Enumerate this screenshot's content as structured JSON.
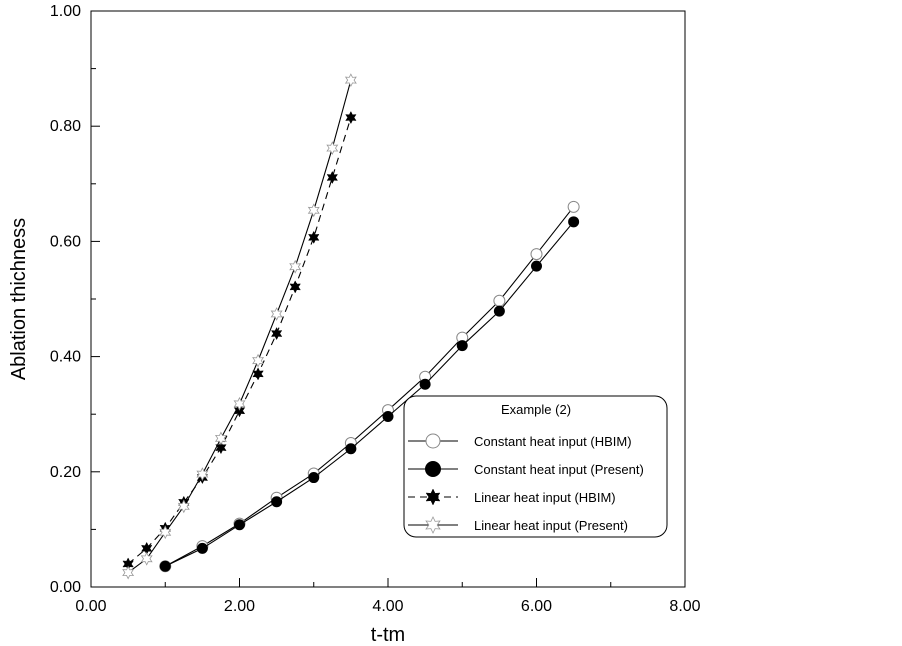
{
  "chart_data": {
    "type": "line",
    "xlabel": "t-tm",
    "ylabel": "Ablation thichness",
    "xlim": [
      0,
      8
    ],
    "ylim": [
      0,
      1
    ],
    "x_ticks": [
      "0.00",
      "2.00",
      "4.00",
      "6.00",
      "8.00"
    ],
    "y_ticks": [
      "0.00",
      "0.20",
      "0.40",
      "0.60",
      "0.80",
      "1.00"
    ],
    "grid": false,
    "legend_title": "Example (2)",
    "legend_position": "lower-right",
    "series": [
      {
        "name": "Constant heat input (HBIM)",
        "marker": "open-circle",
        "line": "solid",
        "color": "#888888",
        "x": [
          1.0,
          1.5,
          2.0,
          2.5,
          3.0,
          3.5,
          4.0,
          4.5,
          5.0,
          5.5,
          6.0,
          6.5
        ],
        "y": [
          0.036,
          0.071,
          0.11,
          0.155,
          0.197,
          0.25,
          0.307,
          0.365,
          0.433,
          0.497,
          0.578,
          0.66
        ]
      },
      {
        "name": "Constant heat input (Present)",
        "marker": "filled-circle",
        "line": "solid",
        "color": "#000000",
        "x": [
          1.0,
          1.5,
          2.0,
          2.5,
          3.0,
          3.5,
          4.0,
          4.5,
          5.0,
          5.5,
          6.0,
          6.5
        ],
        "y": [
          0.036,
          0.067,
          0.108,
          0.148,
          0.19,
          0.24,
          0.296,
          0.352,
          0.419,
          0.479,
          0.557,
          0.634
        ]
      },
      {
        "name": "Linear heat input (HBIM)",
        "marker": "filled-star",
        "line": "dashed",
        "color": "#000000",
        "x": [
          0.5,
          0.75,
          1.0,
          1.25,
          1.5,
          1.75,
          2.0,
          2.25,
          2.5,
          2.75,
          3.0,
          3.25,
          3.5
        ],
        "y": [
          0.04,
          0.067,
          0.102,
          0.147,
          0.19,
          0.242,
          0.306,
          0.37,
          0.44,
          0.521,
          0.607,
          0.711,
          0.815
        ]
      },
      {
        "name": "Linear heat input (Present)",
        "marker": "open-star",
        "line": "solid",
        "color": "#000000",
        "x": [
          0.5,
          0.75,
          1.0,
          1.25,
          1.5,
          1.75,
          2.0,
          2.25,
          2.5,
          2.75,
          3.0,
          3.25,
          3.5
        ],
        "y": [
          0.025,
          0.049,
          0.095,
          0.14,
          0.196,
          0.258,
          0.318,
          0.393,
          0.474,
          0.556,
          0.654,
          0.762,
          0.88
        ]
      }
    ]
  }
}
